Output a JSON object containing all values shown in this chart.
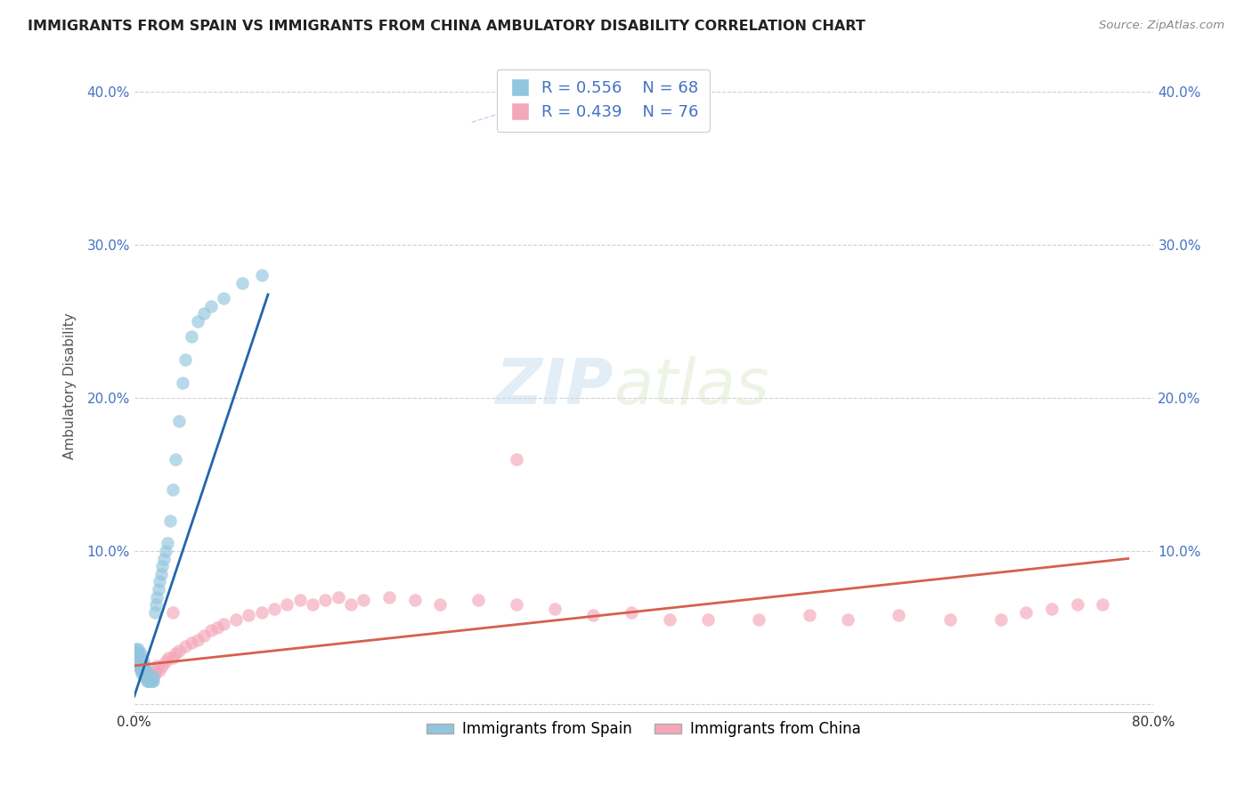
{
  "title": "IMMIGRANTS FROM SPAIN VS IMMIGRANTS FROM CHINA AMBULATORY DISABILITY CORRELATION CHART",
  "source": "Source: ZipAtlas.com",
  "ylabel": "Ambulatory Disability",
  "xlim": [
    0,
    0.8
  ],
  "ylim": [
    -0.005,
    0.42
  ],
  "xtick_positions": [
    0.0,
    0.8
  ],
  "xtick_labels": [
    "0.0%",
    "80.0%"
  ],
  "yticks": [
    0.0,
    0.1,
    0.2,
    0.3,
    0.4
  ],
  "ytick_labels": [
    "",
    "10.0%",
    "20.0%",
    "30.0%",
    "40.0%"
  ],
  "spain_color": "#92c5de",
  "china_color": "#f4a7b9",
  "spain_line_color": "#2166ac",
  "china_line_color": "#d6604d",
  "watermark_zip": "ZIP",
  "watermark_atlas": "atlas",
  "legend_R_spain": "R = 0.556",
  "legend_N_spain": "N = 68",
  "legend_R_china": "R = 0.439",
  "legend_N_china": "N = 76",
  "legend_label_spain": "Immigrants from Spain",
  "legend_label_china": "Immigrants from China",
  "spain_scatter_x": [
    0.001,
    0.001,
    0.001,
    0.002,
    0.002,
    0.002,
    0.002,
    0.003,
    0.003,
    0.003,
    0.003,
    0.003,
    0.004,
    0.004,
    0.004,
    0.004,
    0.005,
    0.005,
    0.005,
    0.005,
    0.005,
    0.006,
    0.006,
    0.006,
    0.007,
    0.007,
    0.007,
    0.007,
    0.008,
    0.008,
    0.008,
    0.009,
    0.009,
    0.009,
    0.01,
    0.01,
    0.01,
    0.011,
    0.011,
    0.012,
    0.012,
    0.013,
    0.014,
    0.015,
    0.015,
    0.016,
    0.017,
    0.018,
    0.019,
    0.02,
    0.021,
    0.022,
    0.023,
    0.025,
    0.026,
    0.028,
    0.03,
    0.032,
    0.035,
    0.038,
    0.04,
    0.045,
    0.05,
    0.055,
    0.06,
    0.07,
    0.085,
    0.1
  ],
  "spain_scatter_y": [
    0.03,
    0.033,
    0.036,
    0.028,
    0.03,
    0.032,
    0.035,
    0.025,
    0.028,
    0.03,
    0.033,
    0.036,
    0.025,
    0.028,
    0.03,
    0.033,
    0.022,
    0.025,
    0.028,
    0.03,
    0.033,
    0.02,
    0.022,
    0.025,
    0.02,
    0.022,
    0.025,
    0.028,
    0.018,
    0.02,
    0.022,
    0.018,
    0.02,
    0.022,
    0.015,
    0.018,
    0.02,
    0.015,
    0.018,
    0.015,
    0.018,
    0.015,
    0.015,
    0.015,
    0.018,
    0.06,
    0.065,
    0.07,
    0.075,
    0.08,
    0.085,
    0.09,
    0.095,
    0.1,
    0.105,
    0.12,
    0.14,
    0.16,
    0.185,
    0.21,
    0.225,
    0.24,
    0.25,
    0.255,
    0.26,
    0.265,
    0.275,
    0.28
  ],
  "china_scatter_x": [
    0.001,
    0.001,
    0.002,
    0.002,
    0.002,
    0.003,
    0.003,
    0.003,
    0.004,
    0.004,
    0.004,
    0.005,
    0.005,
    0.006,
    0.006,
    0.007,
    0.007,
    0.008,
    0.008,
    0.009,
    0.01,
    0.01,
    0.011,
    0.012,
    0.013,
    0.015,
    0.016,
    0.017,
    0.018,
    0.02,
    0.022,
    0.025,
    0.027,
    0.03,
    0.032,
    0.035,
    0.04,
    0.045,
    0.05,
    0.055,
    0.06,
    0.065,
    0.07,
    0.08,
    0.09,
    0.1,
    0.11,
    0.12,
    0.13,
    0.14,
    0.15,
    0.16,
    0.17,
    0.18,
    0.2,
    0.22,
    0.24,
    0.27,
    0.3,
    0.33,
    0.36,
    0.39,
    0.42,
    0.45,
    0.49,
    0.53,
    0.56,
    0.6,
    0.64,
    0.68,
    0.7,
    0.72,
    0.74,
    0.76,
    0.03,
    0.3
  ],
  "china_scatter_y": [
    0.03,
    0.033,
    0.028,
    0.03,
    0.033,
    0.025,
    0.028,
    0.03,
    0.025,
    0.028,
    0.03,
    0.025,
    0.028,
    0.022,
    0.025,
    0.022,
    0.025,
    0.02,
    0.022,
    0.02,
    0.018,
    0.02,
    0.02,
    0.018,
    0.02,
    0.018,
    0.02,
    0.022,
    0.025,
    0.022,
    0.025,
    0.028,
    0.03,
    0.03,
    0.033,
    0.035,
    0.038,
    0.04,
    0.042,
    0.045,
    0.048,
    0.05,
    0.052,
    0.055,
    0.058,
    0.06,
    0.062,
    0.065,
    0.068,
    0.065,
    0.068,
    0.07,
    0.065,
    0.068,
    0.07,
    0.068,
    0.065,
    0.068,
    0.065,
    0.062,
    0.058,
    0.06,
    0.055,
    0.055,
    0.055,
    0.058,
    0.055,
    0.058,
    0.055,
    0.055,
    0.06,
    0.062,
    0.065,
    0.065,
    0.06,
    0.16
  ],
  "dashed_line_x": [
    0.265,
    0.38
  ],
  "dashed_line_y": [
    0.38,
    0.41
  ]
}
